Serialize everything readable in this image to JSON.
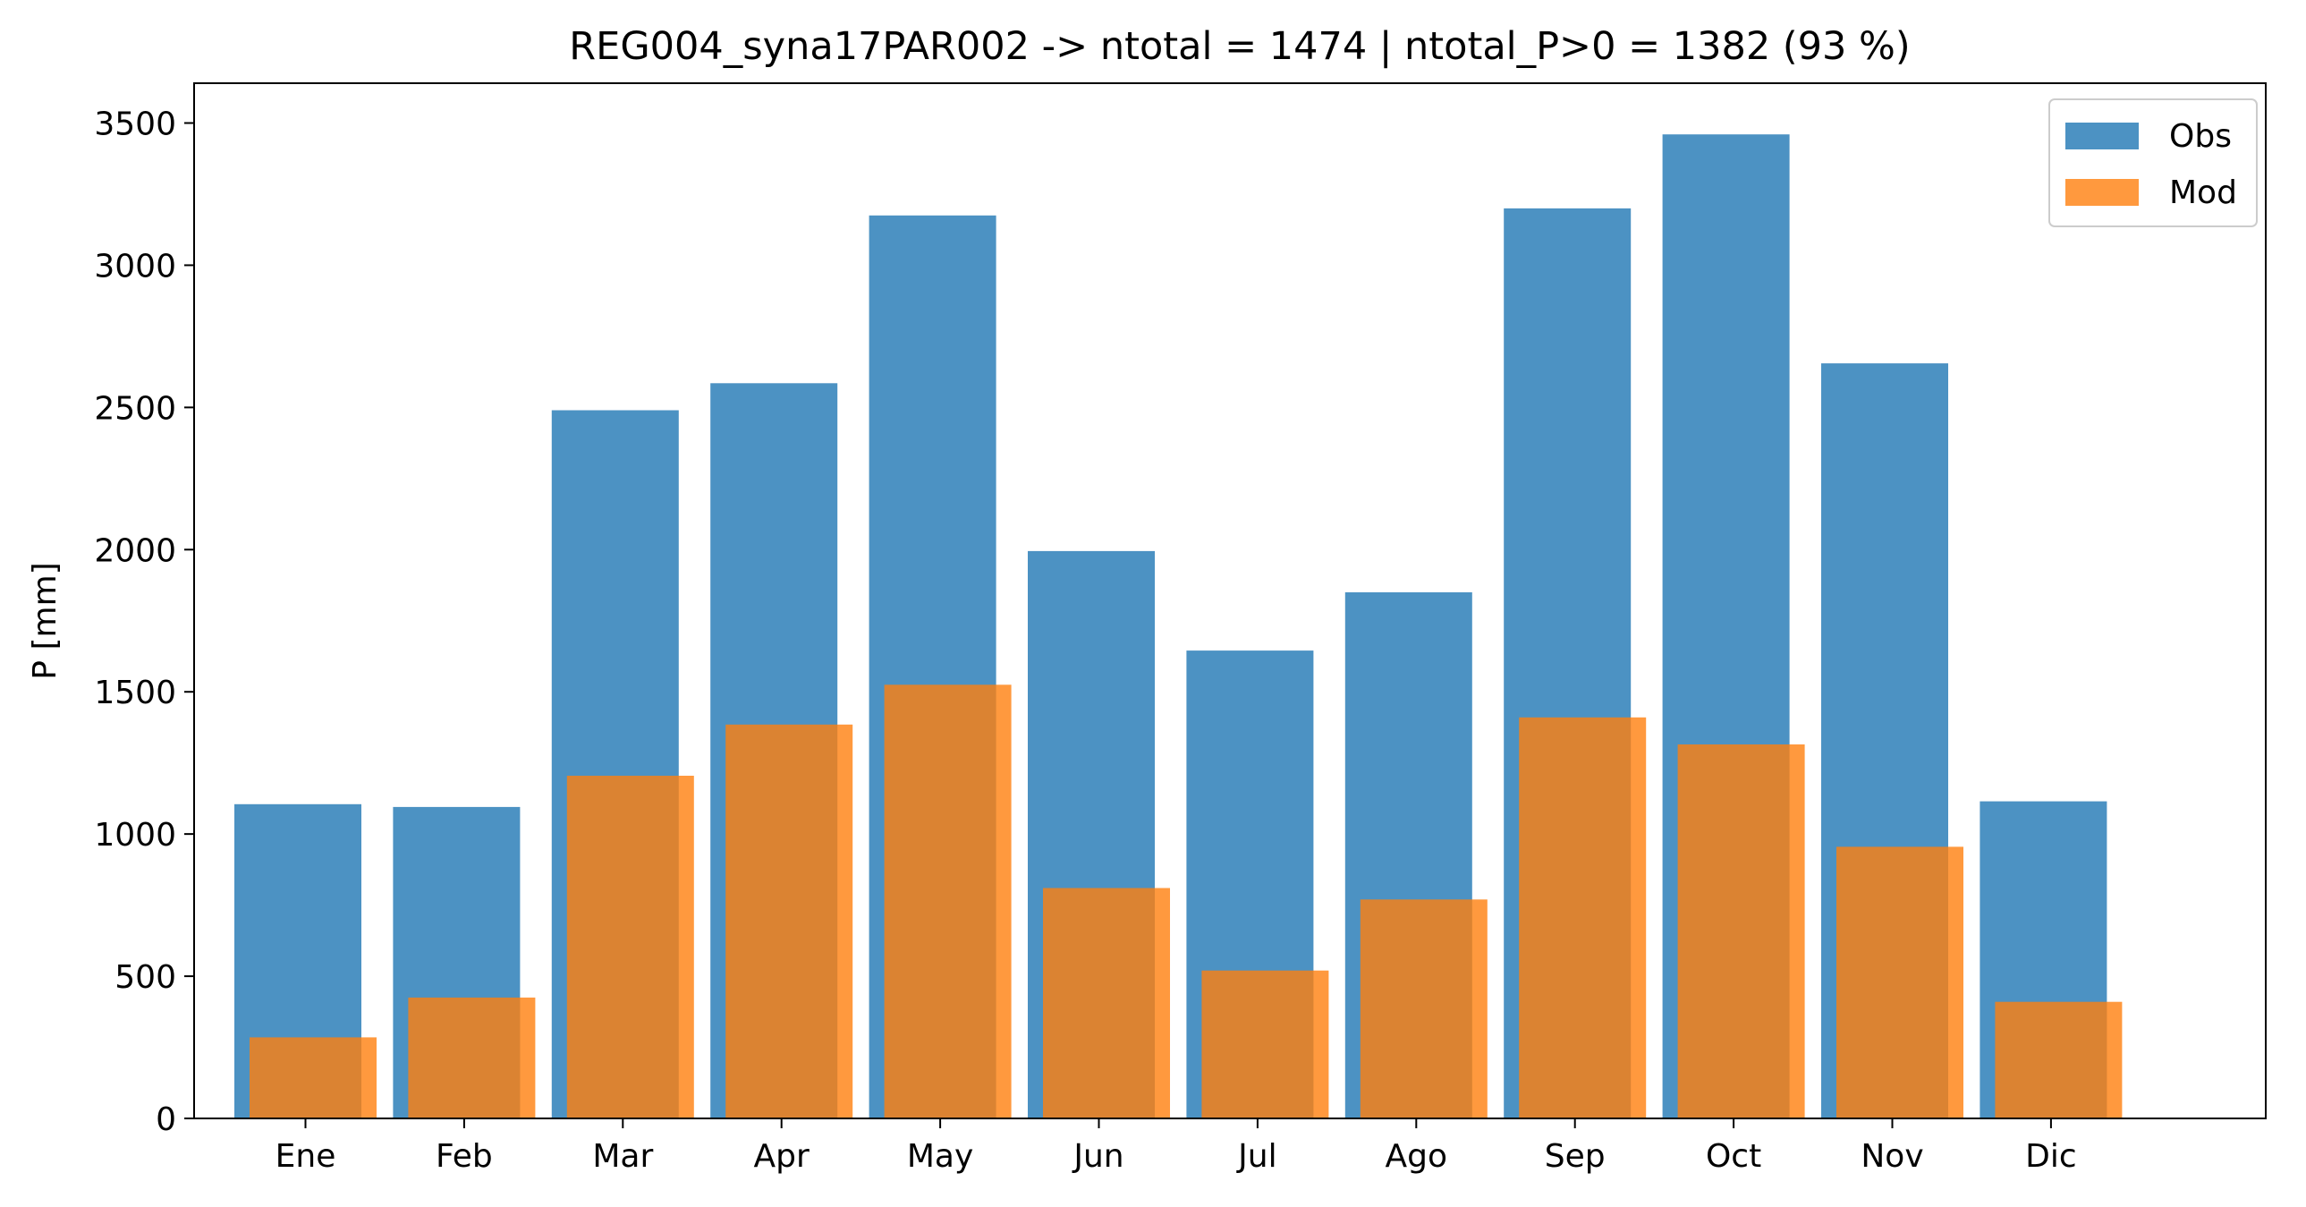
{
  "chart_data": {
    "type": "bar",
    "title": "REG004_syna17PAR002 -> ntotal = 1474 | ntotal_P>0 = 1382 (93 %)",
    "xlabel": "",
    "ylabel": "P [mm]",
    "categories": [
      "Ene",
      "Feb",
      "Mar",
      "Apr",
      "May",
      "Jun",
      "Jul",
      "Ago",
      "Sep",
      "Oct",
      "Nov",
      "Dic"
    ],
    "series": [
      {
        "name": "Obs",
        "color": "#1f77b4",
        "values": [
          1105,
          1095,
          2490,
          2585,
          3175,
          1995,
          1645,
          1850,
          3200,
          3460,
          2655,
          1115
        ]
      },
      {
        "name": "Mod",
        "color": "#ff7f0e",
        "values": [
          285,
          425,
          1205,
          1385,
          1525,
          810,
          520,
          770,
          1410,
          1315,
          955,
          410
        ]
      }
    ],
    "ylim": [
      0,
      3640
    ],
    "yticks": [
      0,
      500,
      1000,
      1500,
      2000,
      2500,
      3000,
      3500
    ],
    "grid": false,
    "legend_position": "top-right",
    "bar_opacity": 0.8
  }
}
